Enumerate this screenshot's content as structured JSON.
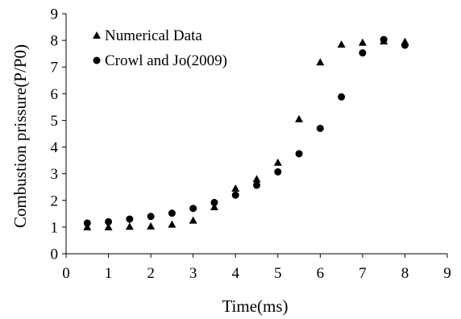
{
  "chart_data": {
    "type": "scatter",
    "xlabel": "Time(ms)",
    "ylabel": "Combustion prissure(P/P0)",
    "xlim": [
      0,
      9
    ],
    "ylim": [
      0,
      9
    ],
    "xticks": [
      "0",
      "1",
      "2",
      "3",
      "4",
      "5",
      "6",
      "7",
      "8",
      "9"
    ],
    "yticks": [
      "0",
      "1",
      "2",
      "3",
      "4",
      "5",
      "6",
      "7",
      "8",
      "9"
    ],
    "grid": false,
    "legend_position": "top-left",
    "series": [
      {
        "name": "Numerical Data",
        "marker": "triangle",
        "color": "#000000",
        "points": [
          [
            0.5,
            1.0
          ],
          [
            1.0,
            1.0
          ],
          [
            1.5,
            1.02
          ],
          [
            2.0,
            1.03
          ],
          [
            2.5,
            1.1
          ],
          [
            3.0,
            1.25
          ],
          [
            3.5,
            1.75
          ],
          [
            4.0,
            2.45
          ],
          [
            4.5,
            2.8
          ],
          [
            5.0,
            3.42
          ],
          [
            5.5,
            5.05
          ],
          [
            6.0,
            7.18
          ],
          [
            6.5,
            7.85
          ],
          [
            7.0,
            7.92
          ],
          [
            7.5,
            7.97
          ],
          [
            8.0,
            7.95
          ]
        ]
      },
      {
        "name": "Crowl and Jo(2009)",
        "marker": "circle",
        "color": "#000000",
        "points": [
          [
            0.5,
            1.15
          ],
          [
            1.0,
            1.2
          ],
          [
            1.5,
            1.3
          ],
          [
            2.0,
            1.4
          ],
          [
            2.5,
            1.52
          ],
          [
            3.0,
            1.7
          ],
          [
            3.5,
            1.92
          ],
          [
            4.0,
            2.2
          ],
          [
            4.5,
            2.57
          ],
          [
            5.0,
            3.07
          ],
          [
            5.5,
            3.75
          ],
          [
            6.0,
            4.7
          ],
          [
            6.5,
            5.88
          ],
          [
            7.0,
            7.53
          ],
          [
            7.5,
            8.03
          ],
          [
            8.0,
            7.82
          ]
        ]
      }
    ]
  }
}
